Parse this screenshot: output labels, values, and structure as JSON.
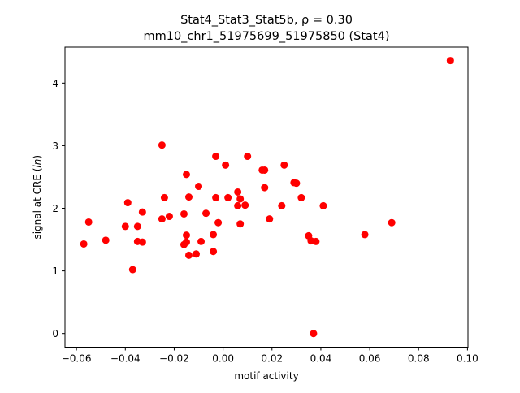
{
  "chart_data": {
    "type": "scatter",
    "title_line1": "Stat4_Stat3_Stat5b, ρ = 0.30",
    "title_line2": "mm10_chr1_51975699_51975850 (Stat4)",
    "xlabel": "motif activity",
    "ylabel_prefix": "signal at CRE (",
    "ylabel_italic": "ln",
    "ylabel_suffix": ")",
    "xlim": [
      -0.0647,
      0.1002
    ],
    "ylim": [
      -0.218,
      4.575
    ],
    "x_ticks": [
      -0.06,
      -0.04,
      -0.02,
      0.0,
      0.02,
      0.04,
      0.06,
      0.08,
      0.1
    ],
    "x_tick_labels": [
      "−0.06",
      "−0.04",
      "−0.02",
      "0.00",
      "0.02",
      "0.04",
      "0.06",
      "0.08",
      "0.10"
    ],
    "y_ticks": [
      0,
      1,
      2,
      3,
      4
    ],
    "y_tick_labels": [
      "0",
      "1",
      "2",
      "3",
      "4"
    ],
    "marker_color": "#ff0000",
    "grid": false,
    "points": [
      {
        "x": -0.057,
        "y": 1.43
      },
      {
        "x": -0.055,
        "y": 1.78
      },
      {
        "x": -0.048,
        "y": 1.49
      },
      {
        "x": -0.04,
        "y": 1.71
      },
      {
        "x": -0.039,
        "y": 2.09
      },
      {
        "x": -0.037,
        "y": 1.02
      },
      {
        "x": -0.035,
        "y": 1.71
      },
      {
        "x": -0.035,
        "y": 1.47
      },
      {
        "x": -0.033,
        "y": 1.46
      },
      {
        "x": -0.033,
        "y": 1.94
      },
      {
        "x": -0.025,
        "y": 3.01
      },
      {
        "x": -0.025,
        "y": 1.83
      },
      {
        "x": -0.024,
        "y": 2.17
      },
      {
        "x": -0.022,
        "y": 1.87
      },
      {
        "x": -0.016,
        "y": 1.91
      },
      {
        "x": -0.016,
        "y": 1.42
      },
      {
        "x": -0.015,
        "y": 1.46
      },
      {
        "x": -0.015,
        "y": 1.57
      },
      {
        "x": -0.015,
        "y": 2.54
      },
      {
        "x": -0.014,
        "y": 2.18
      },
      {
        "x": -0.014,
        "y": 1.25
      },
      {
        "x": -0.011,
        "y": 1.27
      },
      {
        "x": -0.01,
        "y": 2.35
      },
      {
        "x": -0.009,
        "y": 1.47
      },
      {
        "x": -0.007,
        "y": 1.92
      },
      {
        "x": -0.004,
        "y": 1.31
      },
      {
        "x": -0.004,
        "y": 1.58
      },
      {
        "x": -0.003,
        "y": 2.17
      },
      {
        "x": -0.003,
        "y": 2.83
      },
      {
        "x": -0.002,
        "y": 1.77
      },
      {
        "x": 0.001,
        "y": 2.69
      },
      {
        "x": 0.002,
        "y": 2.17
      },
      {
        "x": 0.006,
        "y": 2.26
      },
      {
        "x": 0.006,
        "y": 2.04
      },
      {
        "x": 0.007,
        "y": 1.75
      },
      {
        "x": 0.007,
        "y": 2.15
      },
      {
        "x": 0.009,
        "y": 2.05
      },
      {
        "x": 0.01,
        "y": 2.83
      },
      {
        "x": 0.016,
        "y": 2.61
      },
      {
        "x": 0.017,
        "y": 2.61
      },
      {
        "x": 0.017,
        "y": 2.33
      },
      {
        "x": 0.019,
        "y": 1.83
      },
      {
        "x": 0.024,
        "y": 2.04
      },
      {
        "x": 0.025,
        "y": 2.69
      },
      {
        "x": 0.029,
        "y": 2.41
      },
      {
        "x": 0.03,
        "y": 2.4
      },
      {
        "x": 0.032,
        "y": 2.17
      },
      {
        "x": 0.035,
        "y": 1.56
      },
      {
        "x": 0.036,
        "y": 1.48
      },
      {
        "x": 0.037,
        "y": 0.0
      },
      {
        "x": 0.038,
        "y": 1.47
      },
      {
        "x": 0.041,
        "y": 2.04
      },
      {
        "x": 0.058,
        "y": 1.58
      },
      {
        "x": 0.069,
        "y": 1.77
      },
      {
        "x": 0.093,
        "y": 4.36
      }
    ]
  }
}
